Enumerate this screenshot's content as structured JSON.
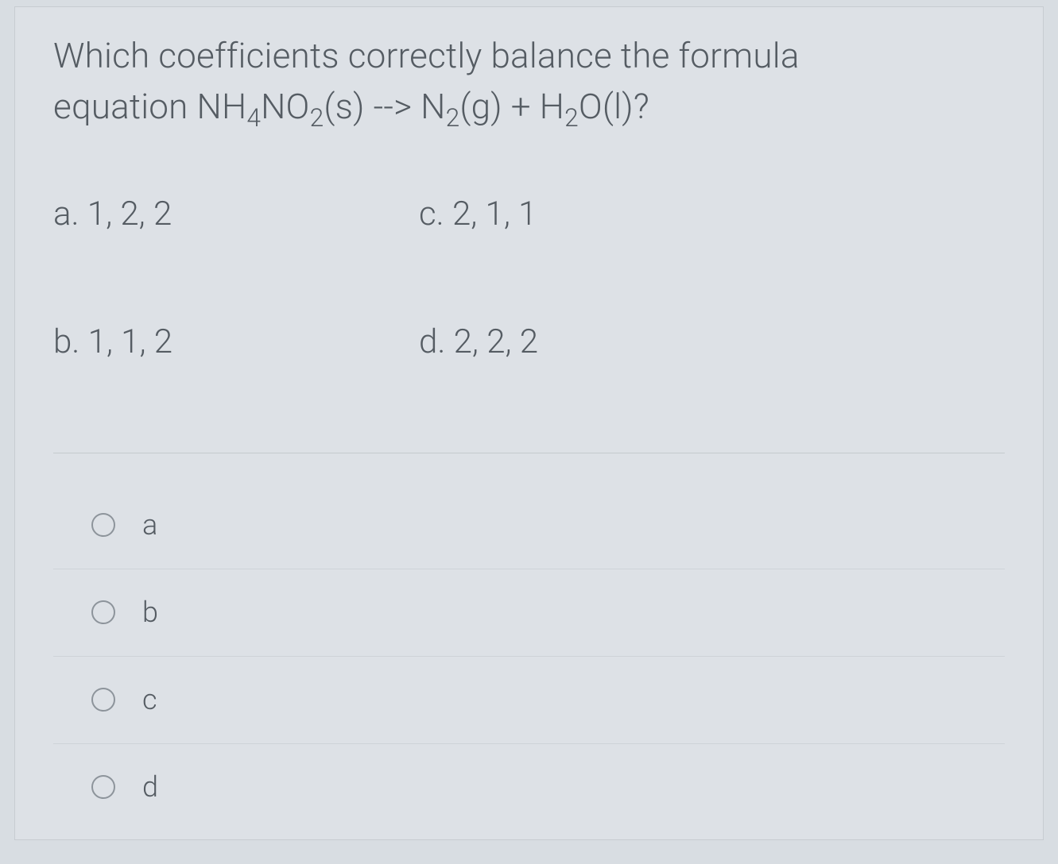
{
  "question": {
    "line1_prefix": "Which coefficients correctly balance the formula",
    "line2_prefix": "equation ",
    "formula_lhs_a": "NH",
    "formula_lhs_a_sub1": "4",
    "formula_lhs_b": "NO",
    "formula_lhs_b_sub1": "2",
    "formula_lhs_state": "(s)",
    "arrow": " --> ",
    "formula_rhs_a": " N",
    "formula_rhs_a_sub1": "2",
    "formula_rhs_a_state": "(g)",
    "plus": " + ",
    "formula_rhs_b": "H",
    "formula_rhs_b_sub1": "2",
    "formula_rhs_b_tail": "O(l)?"
  },
  "choices": {
    "a": "a. 1, 2, 2",
    "b": "b. 1, 1, 2",
    "c": "c. 2, 1, 1",
    "d": "d. 2, 2, 2"
  },
  "radios": {
    "a": "a",
    "b": "b",
    "c": "c",
    "d": "d"
  },
  "colors": {
    "page_bg": "#d8dde2",
    "card_bg": "#dde1e6",
    "card_border": "#c7ccd1",
    "text": "#555c63",
    "divider": "#ced3d8",
    "radio_border": "#8d949b"
  }
}
